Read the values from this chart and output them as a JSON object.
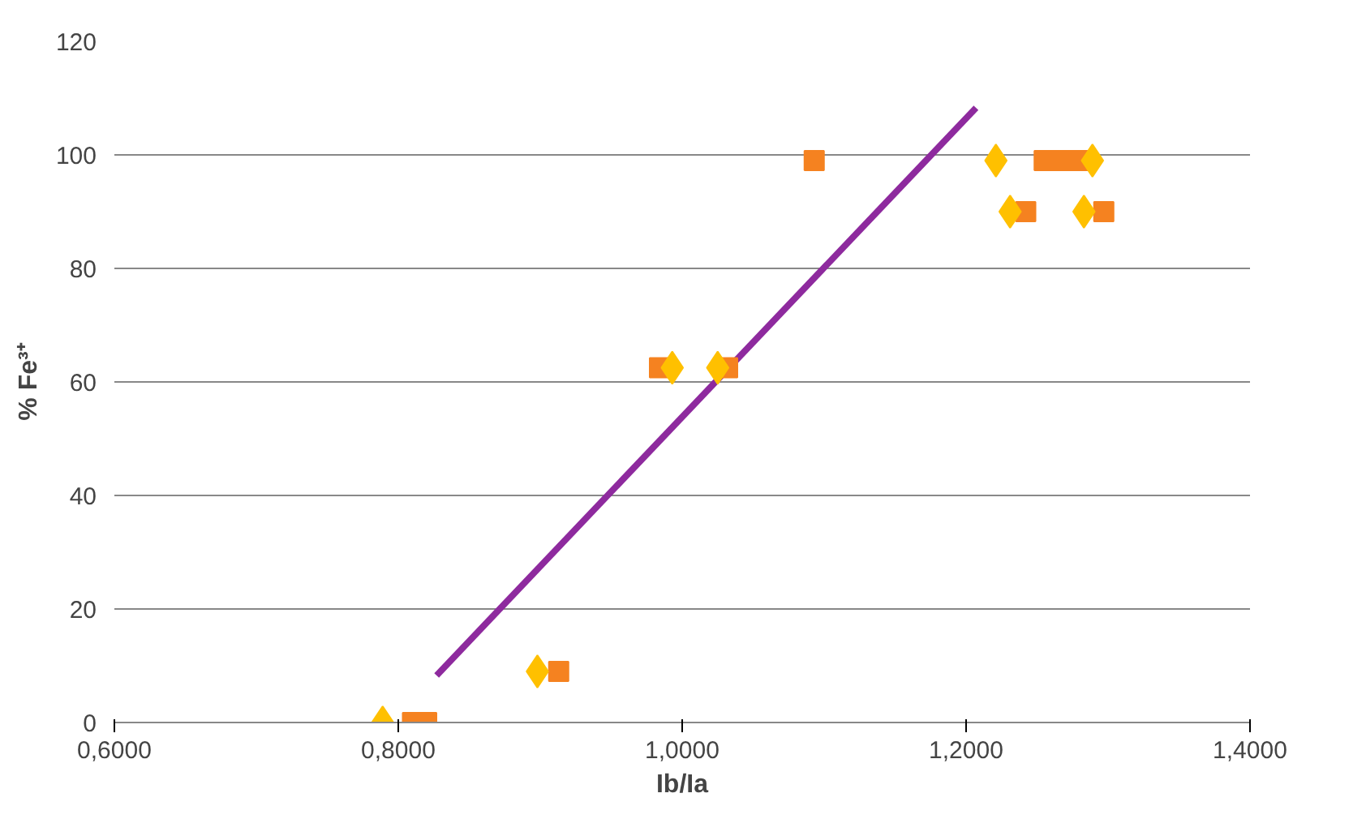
{
  "chart_data": {
    "type": "scatter",
    "xlabel": "Ib/Ia",
    "ylabel": "% Fe³⁺",
    "xlim": [
      0.6,
      1.4
    ],
    "ylim": [
      0,
      120
    ],
    "xticks": [
      {
        "value": 0.6,
        "label": "0,6000"
      },
      {
        "value": 0.8,
        "label": "0,8000"
      },
      {
        "value": 1.0,
        "label": "1,0000"
      },
      {
        "value": 1.2,
        "label": "1,2000"
      },
      {
        "value": 1.4,
        "label": "1,4000"
      }
    ],
    "yticks": [
      0,
      20,
      40,
      60,
      80,
      100,
      120
    ],
    "grid": "y",
    "series": [
      {
        "marker": "diamond",
        "color": "#ffc000",
        "x": [
          0.789,
          0.898,
          0.993,
          1.025,
          1.221,
          1.231,
          1.283,
          1.289
        ],
        "values": [
          0,
          9,
          62.5,
          62.5,
          99,
          90,
          90,
          99
        ]
      },
      {
        "marker": "square",
        "color": "#f58220",
        "x": [
          0.81,
          0.82,
          0.913,
          0.984,
          1.032,
          1.093,
          1.255,
          1.268,
          1.28,
          1.242,
          1.297
        ],
        "values": [
          0,
          0,
          9,
          62.5,
          62.5,
          99,
          99,
          99,
          99,
          90,
          90
        ]
      },
      {
        "type": "line",
        "marker": "none",
        "line_style": "solid",
        "color": "#8e2a9e",
        "x": [
          0.827,
          1.207
        ],
        "values": [
          8.3,
          108.3
        ]
      }
    ]
  }
}
